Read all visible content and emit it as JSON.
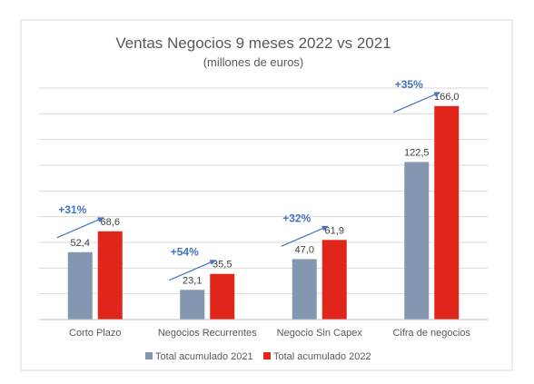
{
  "chart_data": {
    "type": "bar",
    "title": "Ventas Negocios 9 meses 2022 vs 2021",
    "subtitle": "(millones de euros)",
    "categories": [
      "Corto Plazo",
      "Negocios Recurrentes",
      "Negocio Sin Capex",
      "Cifra de negocios"
    ],
    "series": [
      {
        "name": "Total acumulado 2021",
        "values": [
          52.4,
          23.1,
          47.0,
          122.5
        ],
        "labels": [
          "52,4",
          "23,1",
          "47,0",
          "122,5"
        ],
        "color": "#8497b0"
      },
      {
        "name": "Total acumulado 2022",
        "values": [
          68.6,
          35.5,
          61.9,
          166.0
        ],
        "labels": [
          "68,6",
          "35,5",
          "61,9",
          "166,0"
        ],
        "color": "#e0261b"
      }
    ],
    "growth_labels": [
      "+31%",
      "+54%",
      "+32%",
      "+35%"
    ],
    "annotation_color": "#4472c4",
    "grid_color": "#d9d9d9",
    "ylim": [
      0,
      180
    ],
    "grid": true,
    "legend_position": "bottom"
  }
}
